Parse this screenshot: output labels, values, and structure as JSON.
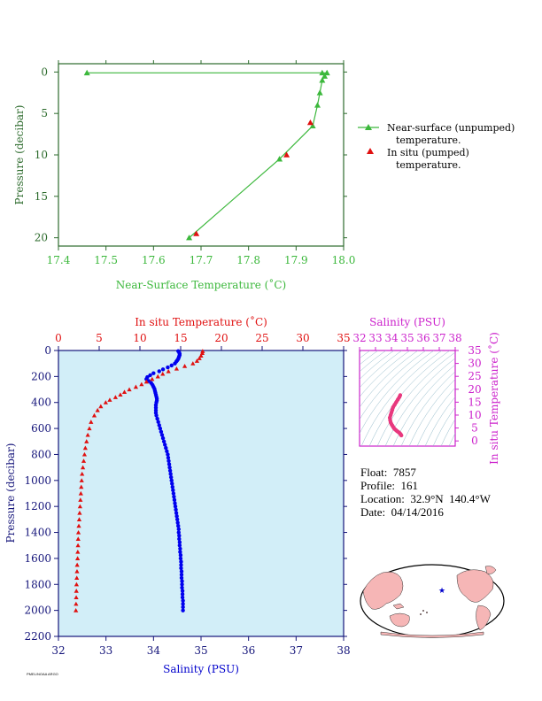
{
  "chart_data": [
    {
      "type": "line",
      "xlabel": "Near-Surface Temperature (˚C)",
      "ylabel": "Pressure (decibar)",
      "xlim": [
        17.4,
        18.0
      ],
      "ylim": [
        21,
        -1
      ],
      "x_ticks": [
        "17.4",
        "17.5",
        "17.6",
        "17.7",
        "17.8",
        "17.9",
        "18.0"
      ],
      "y_ticks": [
        "0",
        "5",
        "10",
        "15",
        "20"
      ],
      "legend_placement": "right",
      "series": [
        {
          "name": "Near-surface (unpumped) temperature.",
          "color": "#3cb83c",
          "marker": "triangle",
          "x": [
            17.46,
            17.955,
            17.965,
            17.96,
            17.955,
            17.95,
            17.945,
            17.935,
            17.865,
            17.675
          ],
          "y": [
            0.1,
            0.1,
            0.1,
            0.5,
            1.0,
            2.5,
            4.0,
            6.5,
            10.5,
            20.0
          ]
        },
        {
          "name": "In situ (pumped) temperature.",
          "color": "#e01010",
          "marker": "triangle",
          "x": [
            17.93,
            17.88,
            17.69
          ],
          "y": [
            6.1,
            10.0,
            19.5
          ]
        }
      ]
    },
    {
      "type": "scatter",
      "xlabel": "Salinity (PSU)",
      "ylabel": "Pressure (decibar)",
      "x2label": "In situ Temperature (˚C)",
      "xlim": [
        32,
        38
      ],
      "x2lim": [
        0,
        35
      ],
      "ylim": [
        2200,
        0
      ],
      "x_ticks": [
        "32",
        "33",
        "34",
        "35",
        "36",
        "37",
        "38"
      ],
      "x2_ticks": [
        "0",
        "5",
        "10",
        "15",
        "20",
        "25",
        "30",
        "35"
      ],
      "y_ticks": [
        "0",
        "200",
        "400",
        "600",
        "800",
        "1000",
        "1200",
        "1400",
        "1600",
        "1800",
        "2000",
        "2200"
      ],
      "background": "#d2eef8",
      "series": [
        {
          "name": "Salinity (PSU)",
          "color": "#0000ee",
          "marker": "circle",
          "axis": "bottom",
          "p": [
            5,
            15,
            25,
            35,
            45,
            55,
            65,
            75,
            85,
            100,
            115,
            130,
            145,
            160,
            175,
            190,
            205,
            220,
            235,
            250,
            265,
            280,
            295,
            310,
            325,
            340,
            355,
            370,
            385,
            400,
            420,
            440,
            460,
            480,
            500,
            525,
            550,
            575,
            600,
            625,
            650,
            675,
            700,
            725,
            750,
            775,
            800,
            825,
            850,
            875,
            900,
            925,
            950,
            975,
            1000,
            1025,
            1050,
            1075,
            1100,
            1125,
            1150,
            1175,
            1200,
            1225,
            1250,
            1275,
            1300,
            1325,
            1350,
            1375,
            1400,
            1425,
            1450,
            1475,
            1500,
            1525,
            1550,
            1575,
            1600,
            1625,
            1650,
            1675,
            1700,
            1725,
            1750,
            1775,
            1800,
            1825,
            1850,
            1875,
            1900,
            1925,
            1950,
            1975,
            2000
          ],
          "v": [
            34.52,
            34.54,
            34.55,
            34.55,
            34.54,
            34.53,
            34.52,
            34.5,
            34.48,
            34.45,
            34.38,
            34.3,
            34.2,
            34.12,
            34.0,
            33.93,
            33.87,
            33.85,
            33.9,
            33.95,
            33.98,
            34.0,
            34.02,
            34.03,
            34.04,
            34.05,
            34.06,
            34.07,
            34.07,
            34.06,
            34.05,
            34.05,
            34.05,
            34.05,
            34.06,
            34.08,
            34.1,
            34.12,
            34.14,
            34.16,
            34.18,
            34.2,
            34.22,
            34.24,
            34.26,
            34.28,
            34.3,
            34.31,
            34.32,
            34.33,
            34.34,
            34.35,
            34.36,
            34.37,
            34.38,
            34.39,
            34.4,
            34.41,
            34.42,
            34.43,
            34.44,
            34.45,
            34.46,
            34.47,
            34.48,
            34.49,
            34.5,
            34.51,
            34.52,
            34.53,
            34.53,
            34.54,
            34.54,
            34.55,
            34.55,
            34.56,
            34.56,
            34.57,
            34.57,
            34.58,
            34.58,
            34.58,
            34.59,
            34.59,
            34.59,
            34.6,
            34.6,
            34.6,
            34.61,
            34.61,
            34.61,
            34.62,
            34.62,
            34.62,
            34.62
          ]
        },
        {
          "name": "In situ Temperature (˚C)",
          "color": "#e01010",
          "marker": "triangle",
          "axis": "top",
          "p": [
            5,
            20,
            40,
            60,
            80,
            100,
            120,
            140,
            160,
            180,
            200,
            220,
            240,
            260,
            280,
            300,
            320,
            340,
            360,
            380,
            400,
            430,
            460,
            500,
            550,
            600,
            650,
            700,
            750,
            800,
            850,
            900,
            950,
            1000,
            1050,
            1100,
            1150,
            1200,
            1250,
            1300,
            1350,
            1400,
            1450,
            1500,
            1550,
            1600,
            1650,
            1700,
            1750,
            1800,
            1850,
            1900,
            1950,
            2000
          ],
          "v": [
            17.7,
            17.65,
            17.5,
            17.3,
            17.0,
            16.5,
            15.5,
            14.5,
            13.5,
            12.8,
            12.2,
            11.5,
            10.8,
            10.2,
            9.5,
            8.7,
            8.1,
            7.6,
            7.0,
            6.3,
            5.8,
            5.2,
            4.8,
            4.4,
            4.0,
            3.8,
            3.6,
            3.45,
            3.3,
            3.2,
            3.1,
            3.0,
            2.9,
            2.85,
            2.8,
            2.75,
            2.7,
            2.65,
            2.6,
            2.55,
            2.5,
            2.45,
            2.42,
            2.4,
            2.37,
            2.35,
            2.3,
            2.28,
            2.25,
            2.22,
            2.2,
            2.18,
            2.16,
            2.14
          ]
        }
      ]
    },
    {
      "type": "scatter",
      "xlabel": "Salinity (PSU)",
      "ylabel": "In situ Temperature (˚C)",
      "xlim": [
        32,
        38
      ],
      "ylim": [
        -2,
        35
      ],
      "x_ticks": [
        "32",
        "33",
        "34",
        "35",
        "36",
        "37",
        "38"
      ],
      "y_ticks": [
        "0",
        "5",
        "10",
        "15",
        "20",
        "25",
        "30",
        "35"
      ],
      "color": "#e8387e",
      "note": "T-S diagram",
      "points_s": [
        34.55,
        34.5,
        34.4,
        34.3,
        34.2,
        34.1,
        34.05,
        34.0,
        33.95,
        33.9,
        33.92,
        33.95,
        34.0,
        34.05,
        34.1,
        34.15,
        34.2,
        34.28,
        34.35,
        34.42,
        34.48,
        34.52,
        34.56,
        34.58,
        34.6,
        34.62
      ],
      "points_t": [
        17.7,
        17.0,
        16.0,
        15.0,
        14.0,
        13.0,
        12.0,
        11.0,
        10.0,
        9.0,
        8.0,
        7.2,
        6.5,
        6.0,
        5.5,
        5.0,
        4.6,
        4.2,
        3.8,
        3.5,
        3.2,
        3.0,
        2.7,
        2.5,
        2.3,
        2.14
      ]
    }
  ],
  "info": {
    "float": "Float:  7857",
    "profile": "Profile:  161",
    "location": "Location:  32.9°N  140.4°W",
    "date": "Date:  04/14/2016"
  },
  "map": {
    "star_lat": 32.9,
    "star_lon": -140.4
  },
  "footer": "PMEL/NOAA ARGO"
}
